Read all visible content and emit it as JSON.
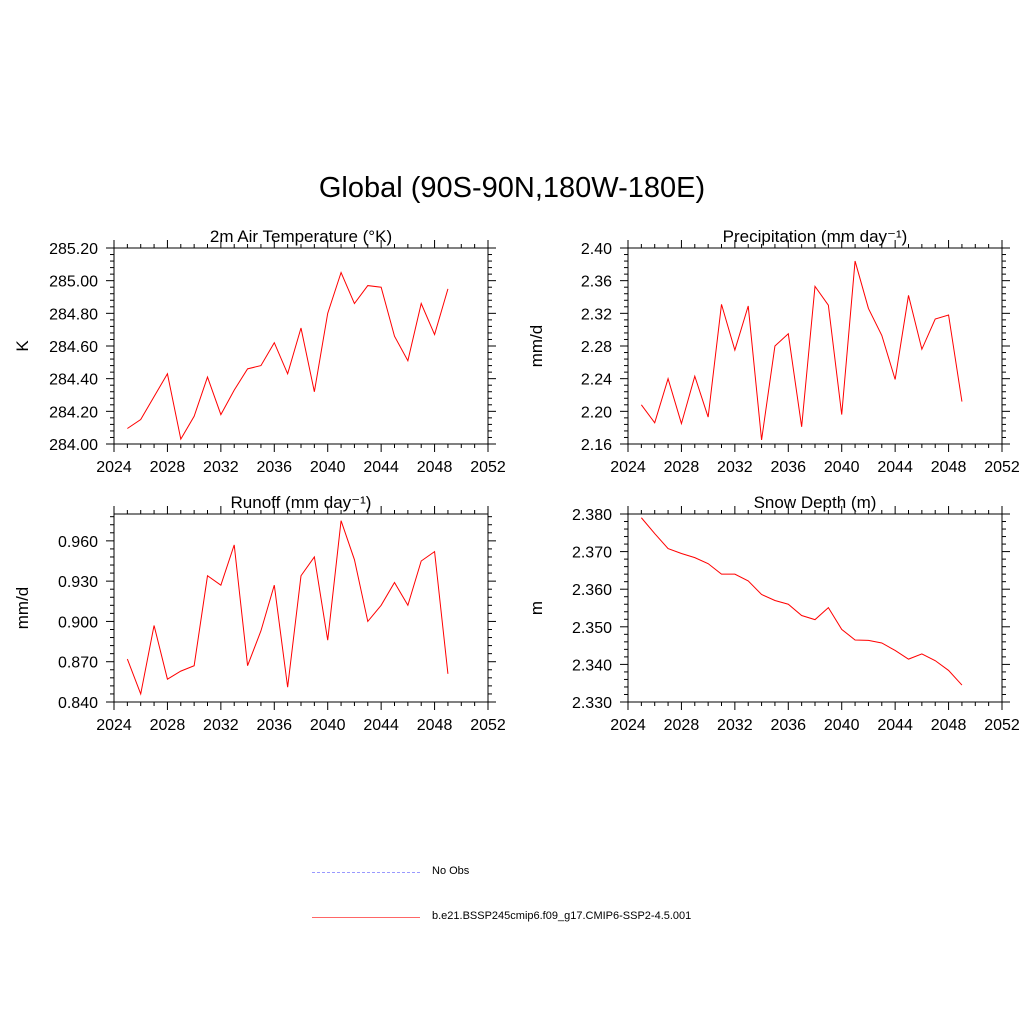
{
  "title": "Global (90S-90N,180W-180E)",
  "chart_data": [
    {
      "type": "line",
      "title": "2m Air Temperature (°K)",
      "ylabel": "K",
      "xlim": [
        2024,
        2052
      ],
      "ylim": [
        284.0,
        285.2
      ],
      "xticks": [
        2024,
        2028,
        2032,
        2036,
        2040,
        2044,
        2048,
        2052
      ],
      "yticks": [
        "284.00",
        "284.20",
        "284.40",
        "284.60",
        "284.80",
        "285.00",
        "285.20"
      ],
      "series": [
        {
          "color": "#ff0000",
          "x": [
            2025,
            2026,
            2027,
            2028,
            2029,
            2030,
            2031,
            2032,
            2033,
            2034,
            2035,
            2036,
            2037,
            2038,
            2039,
            2040,
            2041,
            2042,
            2043,
            2044,
            2045,
            2046,
            2047,
            2048,
            2049
          ],
          "values": [
            284.095,
            284.15,
            284.29,
            284.43,
            284.03,
            284.17,
            284.41,
            284.18,
            284.33,
            284.46,
            284.48,
            284.62,
            284.43,
            284.71,
            284.32,
            284.8,
            285.05,
            284.86,
            284.97,
            284.96,
            284.66,
            284.51,
            284.86,
            284.67,
            284.95
          ]
        }
      ]
    },
    {
      "type": "line",
      "title": "Precipitation (mm day⁻¹)",
      "ylabel": "mm/d",
      "xlim": [
        2024,
        2052
      ],
      "ylim": [
        2.16,
        2.4
      ],
      "xticks": [
        2024,
        2028,
        2032,
        2036,
        2040,
        2044,
        2048,
        2052
      ],
      "yticks": [
        "2.16",
        "2.20",
        "2.24",
        "2.28",
        "2.32",
        "2.36",
        "2.40"
      ],
      "series": [
        {
          "color": "#ff0000",
          "x": [
            2025,
            2026,
            2027,
            2028,
            2029,
            2030,
            2031,
            2032,
            2033,
            2034,
            2035,
            2036,
            2037,
            2038,
            2039,
            2040,
            2041,
            2042,
            2043,
            2044,
            2045,
            2046,
            2047,
            2048,
            2049
          ],
          "values": [
            2.208,
            2.186,
            2.24,
            2.185,
            2.243,
            2.193,
            2.331,
            2.275,
            2.329,
            2.165,
            2.28,
            2.295,
            2.181,
            2.353,
            2.33,
            2.196,
            2.384,
            2.326,
            2.293,
            2.239,
            2.342,
            2.276,
            2.313,
            2.318,
            2.212
          ]
        }
      ]
    },
    {
      "type": "line",
      "title": "Runoff (mm day⁻¹)",
      "ylabel": "mm/d",
      "xlim": [
        2024,
        2052
      ],
      "ylim": [
        0.84,
        0.98
      ],
      "xticks": [
        2024,
        2028,
        2032,
        2036,
        2040,
        2044,
        2048,
        2052
      ],
      "yticks": [
        "0.840",
        "0.870",
        "0.900",
        "0.930",
        "0.960"
      ],
      "series": [
        {
          "color": "#ff0000",
          "x": [
            2025,
            2026,
            2027,
            2028,
            2029,
            2030,
            2031,
            2032,
            2033,
            2034,
            2035,
            2036,
            2037,
            2038,
            2039,
            2040,
            2041,
            2042,
            2043,
            2044,
            2045,
            2046,
            2047,
            2048,
            2049
          ],
          "values": [
            0.872,
            0.846,
            0.897,
            0.857,
            0.863,
            0.867,
            0.934,
            0.927,
            0.957,
            0.867,
            0.893,
            0.927,
            0.851,
            0.934,
            0.948,
            0.886,
            0.975,
            0.946,
            0.9,
            0.912,
            0.929,
            0.912,
            0.945,
            0.952,
            0.861
          ]
        }
      ]
    },
    {
      "type": "line",
      "title": "Snow Depth (m)",
      "ylabel": "m",
      "xlim": [
        2024,
        2052
      ],
      "ylim": [
        2.33,
        2.38
      ],
      "xticks": [
        2024,
        2028,
        2032,
        2036,
        2040,
        2044,
        2048,
        2052
      ],
      "yticks": [
        "2.330",
        "2.340",
        "2.350",
        "2.360",
        "2.370",
        "2.380"
      ],
      "series": [
        {
          "color": "#ff0000",
          "x": [
            2025,
            2026,
            2027,
            2028,
            2029,
            2030,
            2031,
            2032,
            2033,
            2034,
            2035,
            2036,
            2037,
            2038,
            2039,
            2040,
            2041,
            2042,
            2043,
            2044,
            2045,
            2046,
            2047,
            2048,
            2049
          ],
          "values": [
            2.379,
            2.3748,
            2.3708,
            2.3695,
            2.3684,
            2.3668,
            2.364,
            2.364,
            2.3622,
            2.3586,
            2.357,
            2.356,
            2.353,
            2.3519,
            2.3551,
            2.3493,
            2.3465,
            2.3464,
            2.3457,
            2.3437,
            2.3414,
            2.3428,
            2.341,
            2.3384,
            2.3345
          ]
        }
      ]
    }
  ],
  "legend": [
    {
      "label": "No Obs",
      "color": "#9999ff",
      "style": "dashed"
    },
    {
      "label": "b.e21.BSSP245cmip6.f09_g17.CMIP6-SSP2-4.5.001",
      "color": "#ff6666",
      "style": "solid"
    }
  ]
}
